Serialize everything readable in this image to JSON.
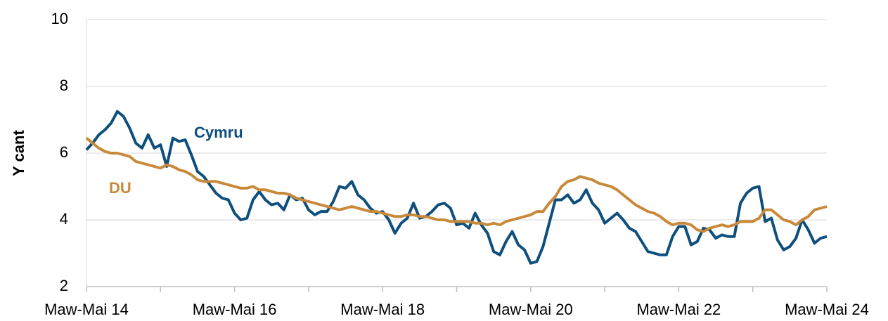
{
  "chart_data": {
    "type": "line",
    "ylabel": "Y cant",
    "categories": [
      "Maw-Mai 14",
      null,
      null,
      null,
      null,
      null,
      null,
      null,
      null,
      null,
      null,
      null,
      null,
      null,
      null,
      null,
      null,
      null,
      null,
      null,
      null,
      null,
      null,
      null,
      "Maw-Mai 16",
      null,
      null,
      null,
      null,
      null,
      null,
      null,
      null,
      null,
      null,
      null,
      null,
      null,
      null,
      null,
      null,
      null,
      null,
      null,
      null,
      null,
      null,
      null,
      "Maw-Mai 18",
      null,
      null,
      null,
      null,
      null,
      null,
      null,
      null,
      null,
      null,
      null,
      null,
      null,
      null,
      null,
      null,
      null,
      null,
      null,
      null,
      null,
      null,
      null,
      "Maw-Mai 20",
      null,
      null,
      null,
      null,
      null,
      null,
      null,
      null,
      null,
      null,
      null,
      null,
      null,
      null,
      null,
      null,
      null,
      null,
      null,
      null,
      null,
      null,
      null,
      "Maw-Mai 22",
      null,
      null,
      null,
      null,
      null,
      null,
      null,
      null,
      null,
      null,
      null,
      null,
      null,
      null,
      null,
      null,
      null,
      null,
      null,
      null,
      null,
      null,
      null,
      "Maw-Mai 24"
    ],
    "series": [
      {
        "name": "Cymru",
        "color": "#0e4f7d",
        "values": [
          6.1,
          6.3,
          6.55,
          6.7,
          6.9,
          7.25,
          7.1,
          6.75,
          6.3,
          6.15,
          6.55,
          6.15,
          6.25,
          5.6,
          6.45,
          6.35,
          6.4,
          5.95,
          5.45,
          5.3,
          5.05,
          4.8,
          4.65,
          4.6,
          4.2,
          4.0,
          4.05,
          4.6,
          4.85,
          4.6,
          4.45,
          4.5,
          4.3,
          4.75,
          4.6,
          4.65,
          4.3,
          4.15,
          4.25,
          4.25,
          4.55,
          5.0,
          4.95,
          5.15,
          4.75,
          4.6,
          4.35,
          4.2,
          4.25,
          4.0,
          3.6,
          3.9,
          4.05,
          4.5,
          4.05,
          4.1,
          4.25,
          4.45,
          4.5,
          4.35,
          3.85,
          3.9,
          3.75,
          4.2,
          3.85,
          3.6,
          3.05,
          2.95,
          3.35,
          3.65,
          3.25,
          3.1,
          2.7,
          2.75,
          3.2,
          3.9,
          4.6,
          4.6,
          4.75,
          4.5,
          4.6,
          4.9,
          4.5,
          4.3,
          3.9,
          4.05,
          4.2,
          4.0,
          3.75,
          3.65,
          3.35,
          3.05,
          3.0,
          2.95,
          2.95,
          3.5,
          3.8,
          3.8,
          3.25,
          3.35,
          3.75,
          3.7,
          3.45,
          3.55,
          3.5,
          3.5,
          4.5,
          4.8,
          4.95,
          5.0,
          3.95,
          4.05,
          3.4,
          3.1,
          3.2,
          3.45,
          4.0,
          3.7,
          3.3,
          3.45,
          3.5
        ]
      },
      {
        "name": "DU",
        "color": "#c9893a",
        "values": [
          6.45,
          6.3,
          6.15,
          6.05,
          6.0,
          6.0,
          5.95,
          5.9,
          5.75,
          5.7,
          5.65,
          5.6,
          5.55,
          5.65,
          5.6,
          5.5,
          5.45,
          5.35,
          5.2,
          5.15,
          5.15,
          5.15,
          5.1,
          5.05,
          5.0,
          4.95,
          4.95,
          5.0,
          4.9,
          4.9,
          4.85,
          4.8,
          4.8,
          4.75,
          4.65,
          4.6,
          4.55,
          4.5,
          4.45,
          4.4,
          4.35,
          4.3,
          4.35,
          4.4,
          4.35,
          4.3,
          4.25,
          4.25,
          4.2,
          4.15,
          4.1,
          4.1,
          4.15,
          4.15,
          4.1,
          4.1,
          4.05,
          4.0,
          4.0,
          3.95,
          3.95,
          3.95,
          3.95,
          3.9,
          3.9,
          3.85,
          3.9,
          3.85,
          3.95,
          4.0,
          4.05,
          4.1,
          4.15,
          4.25,
          4.25,
          4.5,
          4.7,
          5.0,
          5.15,
          5.2,
          5.3,
          5.25,
          5.2,
          5.1,
          5.05,
          5.0,
          4.9,
          4.75,
          4.6,
          4.45,
          4.35,
          4.25,
          4.2,
          4.1,
          3.95,
          3.85,
          3.9,
          3.9,
          3.85,
          3.7,
          3.65,
          3.75,
          3.8,
          3.85,
          3.8,
          3.85,
          3.95,
          3.95,
          3.95,
          4.05,
          4.3,
          4.3,
          4.15,
          4.0,
          3.95,
          3.85,
          4.0,
          4.1,
          4.3,
          4.35,
          4.4
        ]
      }
    ],
    "ylim": [
      2,
      10
    ],
    "yticks": [
      2,
      4,
      6,
      8,
      10
    ],
    "grid": true
  }
}
